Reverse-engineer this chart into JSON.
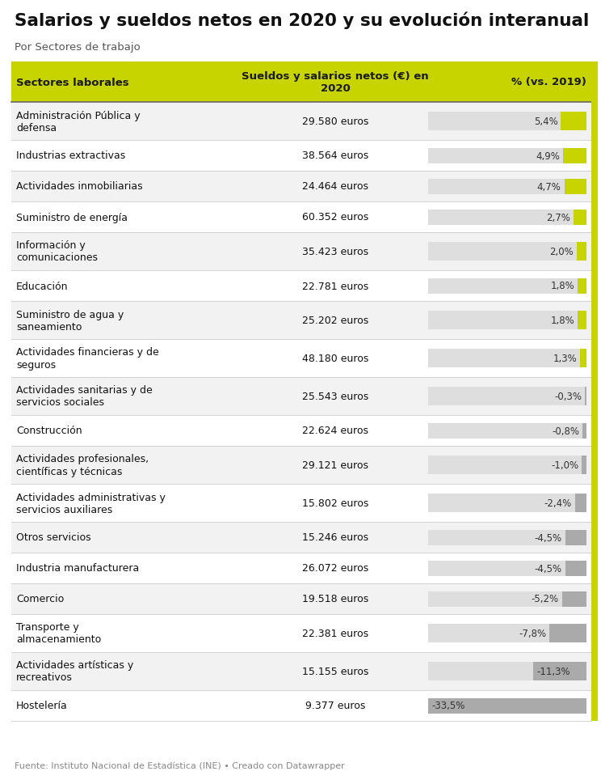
{
  "title": "Salarios y sueldos netos en 2020 y su evolución interanual",
  "subtitle": "Por Sectores de trabajo",
  "header_col1": "Sectores laborales",
  "header_col2": "Sueldos y salarios netos (€) en\n2020",
  "header_col3": "% (vs. 2019)",
  "header_bg": "#c8d400",
  "header_text_color": "#1a1a1a",
  "row_bg_even": "#f2f2f2",
  "row_bg_odd": "#ffffff",
  "separator_color": "#cccccc",
  "bar_positive_color": "#c8d400",
  "bar_negative_color": "#aaaaaa",
  "bar_bg_color": "#dedede",
  "right_border_color": "#c8d400",
  "footer": "Fuente: Instituto Nacional de Estadística (INE) • Creado con Datawrapper",
  "sectors": [
    {
      "name": "Administración Pública y\ndefensa",
      "salary": "29.580 euros",
      "pct": 5.4,
      "pct_str": "5,4%"
    },
    {
      "name": "Industrias extractivas",
      "salary": "38.564 euros",
      "pct": 4.9,
      "pct_str": "4,9%"
    },
    {
      "name": "Actividades inmobiliarias",
      "salary": "24.464 euros",
      "pct": 4.7,
      "pct_str": "4,7%"
    },
    {
      "name": "Suministro de energía",
      "salary": "60.352 euros",
      "pct": 2.7,
      "pct_str": "2,7%"
    },
    {
      "name": "Información y\ncomunicaciones",
      "salary": "35.423 euros",
      "pct": 2.0,
      "pct_str": "2,0%"
    },
    {
      "name": "Educación",
      "salary": "22.781 euros",
      "pct": 1.8,
      "pct_str": "1,8%"
    },
    {
      "name": "Suministro de agua y\nsaneamiento",
      "salary": "25.202 euros",
      "pct": 1.8,
      "pct_str": "1,8%"
    },
    {
      "name": "Actividades financieras y de\nseguros",
      "salary": "48.180 euros",
      "pct": 1.3,
      "pct_str": "1,3%"
    },
    {
      "name": "Actividades sanitarias y de\nservicios sociales",
      "salary": "25.543 euros",
      "pct": -0.3,
      "pct_str": "-0,3%"
    },
    {
      "name": "Construcción",
      "salary": "22.624 euros",
      "pct": -0.8,
      "pct_str": "-0,8%"
    },
    {
      "name": "Actividades profesionales,\ncientíficas y técnicas",
      "salary": "29.121 euros",
      "pct": -1.0,
      "pct_str": "-1,0%"
    },
    {
      "name": "Actividades administrativas y\nservicios auxiliares",
      "salary": "15.802 euros",
      "pct": -2.4,
      "pct_str": "-2,4%"
    },
    {
      "name": "Otros servicios",
      "salary": "15.246 euros",
      "pct": -4.5,
      "pct_str": "-4,5%"
    },
    {
      "name": "Industria manufacturera",
      "salary": "26.072 euros",
      "pct": -4.5,
      "pct_str": "-4,5%"
    },
    {
      "name": "Comercio",
      "salary": "19.518 euros",
      "pct": -5.2,
      "pct_str": "-5,2%"
    },
    {
      "name": "Transporte y\nalmacenamiento",
      "salary": "22.381 euros",
      "pct": -7.8,
      "pct_str": "-7,8%"
    },
    {
      "name": "Actividades artísticas y\nrecreativos",
      "salary": "15.155 euros",
      "pct": -11.3,
      "pct_str": "-11,3%"
    },
    {
      "name": "Hostelería",
      "salary": "9.377 euros",
      "pct": -33.5,
      "pct_str": "-33,5%"
    }
  ]
}
